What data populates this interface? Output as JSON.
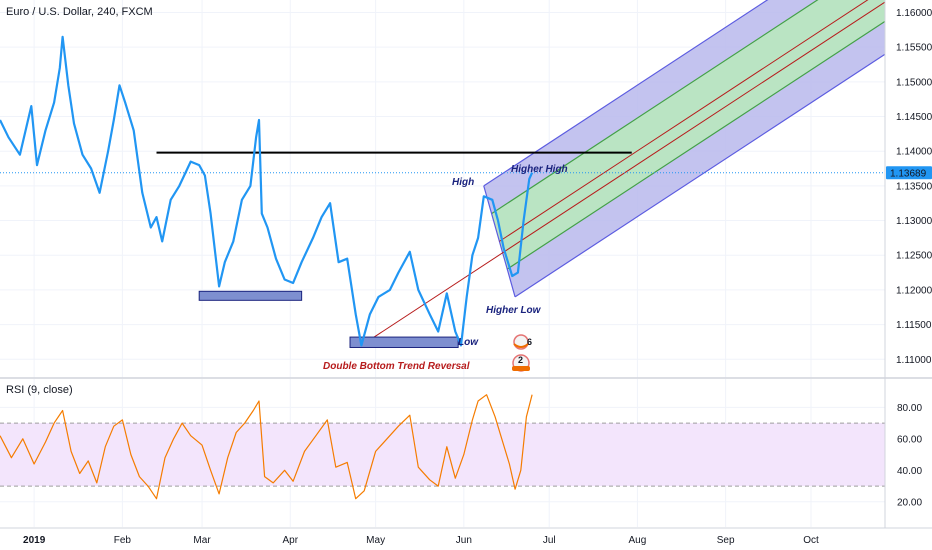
{
  "chart_data": [
    {
      "type": "line",
      "title": "Euro / U.S. Dollar, 240, FXCM",
      "price_axis": {
        "ticks": [
          "1.16000",
          "1.15500",
          "1.15000",
          "1.14500",
          "1.14000",
          "1.13500",
          "1.13000",
          "1.12500",
          "1.12000",
          "1.11500",
          "1.11000"
        ],
        "ylim": [
          1.1073,
          1.1618
        ],
        "position": "right"
      },
      "last_price": {
        "value": 1.13689,
        "label": "1.13689",
        "color": "#2196f3"
      },
      "x_axis": {
        "labels": [
          "2019",
          "Feb",
          "Mar",
          "Apr",
          "May",
          "Jun",
          "Jul",
          "Aug",
          "Sep",
          "Oct"
        ],
        "label_dates": [
          "2019-01-01",
          "2019-02-01",
          "2019-03-01",
          "2019-04-01",
          "2019-05-01",
          "2019-06-01",
          "2019-07-01",
          "2019-08-01",
          "2019-09-01",
          "2019-10-01"
        ],
        "xlim": [
          "2018-12-20",
          "2019-10-27"
        ]
      },
      "series": [
        {
          "color": "#2196f3",
          "points": [
            [
              "2018-12-20",
              1.1445
            ],
            [
              "2018-12-23",
              1.142
            ],
            [
              "2018-12-27",
              1.1395
            ],
            [
              "2018-12-31",
              1.1465
            ],
            [
              "2019-01-02",
              1.138
            ],
            [
              "2019-01-05",
              1.143
            ],
            [
              "2019-01-08",
              1.147
            ],
            [
              "2019-01-10",
              1.152
            ],
            [
              "2019-01-11",
              1.1565
            ],
            [
              "2019-01-13",
              1.1495
            ],
            [
              "2019-01-15",
              1.144
            ],
            [
              "2019-01-18",
              1.1395
            ],
            [
              "2019-01-21",
              1.1375
            ],
            [
              "2019-01-24",
              1.134
            ],
            [
              "2019-01-27",
              1.14
            ],
            [
              "2019-01-29",
              1.1445
            ],
            [
              "2019-01-31",
              1.1495
            ],
            [
              "2019-02-02",
              1.147
            ],
            [
              "2019-02-05",
              1.143
            ],
            [
              "2019-02-08",
              1.134
            ],
            [
              "2019-02-11",
              1.129
            ],
            [
              "2019-02-13",
              1.1305
            ],
            [
              "2019-02-15",
              1.127
            ],
            [
              "2019-02-18",
              1.133
            ],
            [
              "2019-02-21",
              1.135
            ],
            [
              "2019-02-25",
              1.1385
            ],
            [
              "2019-02-28",
              1.138
            ],
            [
              "2019-03-02",
              1.1365
            ],
            [
              "2019-03-04",
              1.131
            ],
            [
              "2019-03-07",
              1.1205
            ],
            [
              "2019-03-09",
              1.124
            ],
            [
              "2019-03-12",
              1.127
            ],
            [
              "2019-03-15",
              1.133
            ],
            [
              "2019-03-18",
              1.135
            ],
            [
              "2019-03-20",
              1.142
            ],
            [
              "2019-03-21",
              1.1445
            ],
            [
              "2019-03-22",
              1.131
            ],
            [
              "2019-03-24",
              1.129
            ],
            [
              "2019-03-27",
              1.1245
            ],
            [
              "2019-03-30",
              1.1215
            ],
            [
              "2019-04-02",
              1.121
            ],
            [
              "2019-04-05",
              1.124
            ],
            [
              "2019-04-09",
              1.1275
            ],
            [
              "2019-04-12",
              1.1305
            ],
            [
              "2019-04-15",
              1.1325
            ],
            [
              "2019-04-18",
              1.124
            ],
            [
              "2019-04-21",
              1.1245
            ],
            [
              "2019-04-24",
              1.1165
            ],
            [
              "2019-04-26",
              1.112
            ],
            [
              "2019-04-29",
              1.1165
            ],
            [
              "2019-05-02",
              1.119
            ],
            [
              "2019-05-06",
              1.12
            ],
            [
              "2019-05-09",
              1.1225
            ],
            [
              "2019-05-13",
              1.1255
            ],
            [
              "2019-05-16",
              1.12
            ],
            [
              "2019-05-20",
              1.1165
            ],
            [
              "2019-05-23",
              1.114
            ],
            [
              "2019-05-26",
              1.1195
            ],
            [
              "2019-05-29",
              1.114
            ],
            [
              "2019-05-31",
              1.112
            ],
            [
              "2019-06-02",
              1.119
            ],
            [
              "2019-06-04",
              1.125
            ],
            [
              "2019-06-06",
              1.1275
            ],
            [
              "2019-06-08",
              1.1335
            ],
            [
              "2019-06-11",
              1.133
            ],
            [
              "2019-06-13",
              1.13
            ],
            [
              "2019-06-15",
              1.126
            ],
            [
              "2019-06-18",
              1.122
            ],
            [
              "2019-06-20",
              1.1225
            ],
            [
              "2019-06-22",
              1.13
            ],
            [
              "2019-06-24",
              1.136
            ],
            [
              "2019-06-25",
              1.1369
            ]
          ]
        }
      ],
      "annotations": {
        "high": "High",
        "higher_high": "Higher High",
        "higher_low": "Higher Low",
        "low": "Low",
        "pattern": "Double Bottom Trend Reversal"
      },
      "drawings": {
        "resistance_line": {
          "color": "#000000",
          "from": [
            "2019-02-13",
            1.1398
          ],
          "to": [
            "2019-07-30",
            1.1398
          ]
        },
        "trend_line": {
          "color": "#b71c1c",
          "from": [
            "2019-04-26",
            1.112
          ],
          "to": [
            "2019-10-27",
            1.1615
          ]
        },
        "pitchfork": {
          "color_outer": "#5c5ce0",
          "color_inner": "#43a047",
          "fill_outer": "#b8b8ec",
          "fill_inner": "#b9e6c0",
          "base_high": [
            "2019-06-08",
            1.135
          ],
          "base_low": [
            "2019-06-19",
            1.119
          ],
          "end_date": "2019-10-27"
        },
        "support_boxes": [
          {
            "from": [
              "2019-02-28",
              1.1198
            ],
            "to": [
              "2019-04-05",
              1.1185
            ],
            "color": "#7e8fd0"
          },
          {
            "from": [
              "2019-04-22",
              1.1132
            ],
            "to": [
              "2019-05-30",
              1.1117
            ],
            "color": "#7e8fd0"
          }
        ]
      },
      "badges": [
        "6",
        "2"
      ],
      "grid": true
    },
    {
      "type": "line",
      "title": "RSI (9, close)",
      "y_axis": {
        "ticks": [
          "80.00",
          "60.00",
          "40.00",
          "20.00"
        ],
        "ylim": [
          4,
          98
        ],
        "position": "right"
      },
      "band": {
        "upper": 70,
        "lower": 30,
        "fill": "#f3e5fc"
      },
      "series": [
        {
          "color": "#f57c00",
          "points": [
            [
              "2018-12-20",
              62
            ],
            [
              "2018-12-24",
              48
            ],
            [
              "2018-12-28",
              60
            ],
            [
              "2019-01-01",
              44
            ],
            [
              "2019-01-05",
              58
            ],
            [
              "2019-01-08",
              70
            ],
            [
              "2019-01-11",
              78
            ],
            [
              "2019-01-14",
              52
            ],
            [
              "2019-01-17",
              38
            ],
            [
              "2019-01-20",
              46
            ],
            [
              "2019-01-23",
              32
            ],
            [
              "2019-01-26",
              55
            ],
            [
              "2019-01-29",
              68
            ],
            [
              "2019-02-01",
              72
            ],
            [
              "2019-02-04",
              50
            ],
            [
              "2019-02-07",
              36
            ],
            [
              "2019-02-10",
              30
            ],
            [
              "2019-02-13",
              22
            ],
            [
              "2019-02-16",
              48
            ],
            [
              "2019-02-19",
              60
            ],
            [
              "2019-02-22",
              70
            ],
            [
              "2019-02-25",
              62
            ],
            [
              "2019-03-01",
              56
            ],
            [
              "2019-03-04",
              40
            ],
            [
              "2019-03-07",
              25
            ],
            [
              "2019-03-10",
              48
            ],
            [
              "2019-03-13",
              64
            ],
            [
              "2019-03-16",
              70
            ],
            [
              "2019-03-19",
              78
            ],
            [
              "2019-03-21",
              84
            ],
            [
              "2019-03-23",
              36
            ],
            [
              "2019-03-26",
              32
            ],
            [
              "2019-03-30",
              40
            ],
            [
              "2019-04-02",
              33
            ],
            [
              "2019-04-06",
              52
            ],
            [
              "2019-04-10",
              62
            ],
            [
              "2019-04-14",
              72
            ],
            [
              "2019-04-17",
              42
            ],
            [
              "2019-04-21",
              45
            ],
            [
              "2019-04-24",
              22
            ],
            [
              "2019-04-27",
              27
            ],
            [
              "2019-05-01",
              52
            ],
            [
              "2019-05-05",
              60
            ],
            [
              "2019-05-09",
              68
            ],
            [
              "2019-05-13",
              75
            ],
            [
              "2019-05-16",
              42
            ],
            [
              "2019-05-20",
              34
            ],
            [
              "2019-05-23",
              30
            ],
            [
              "2019-05-26",
              55
            ],
            [
              "2019-05-29",
              35
            ],
            [
              "2019-06-01",
              50
            ],
            [
              "2019-06-04",
              72
            ],
            [
              "2019-06-06",
              84
            ],
            [
              "2019-06-09",
              88
            ],
            [
              "2019-06-12",
              74
            ],
            [
              "2019-06-14",
              62
            ],
            [
              "2019-06-17",
              44
            ],
            [
              "2019-06-19",
              28
            ],
            [
              "2019-06-21",
              40
            ],
            [
              "2019-06-23",
              74
            ],
            [
              "2019-06-25",
              88
            ]
          ]
        }
      ]
    }
  ]
}
